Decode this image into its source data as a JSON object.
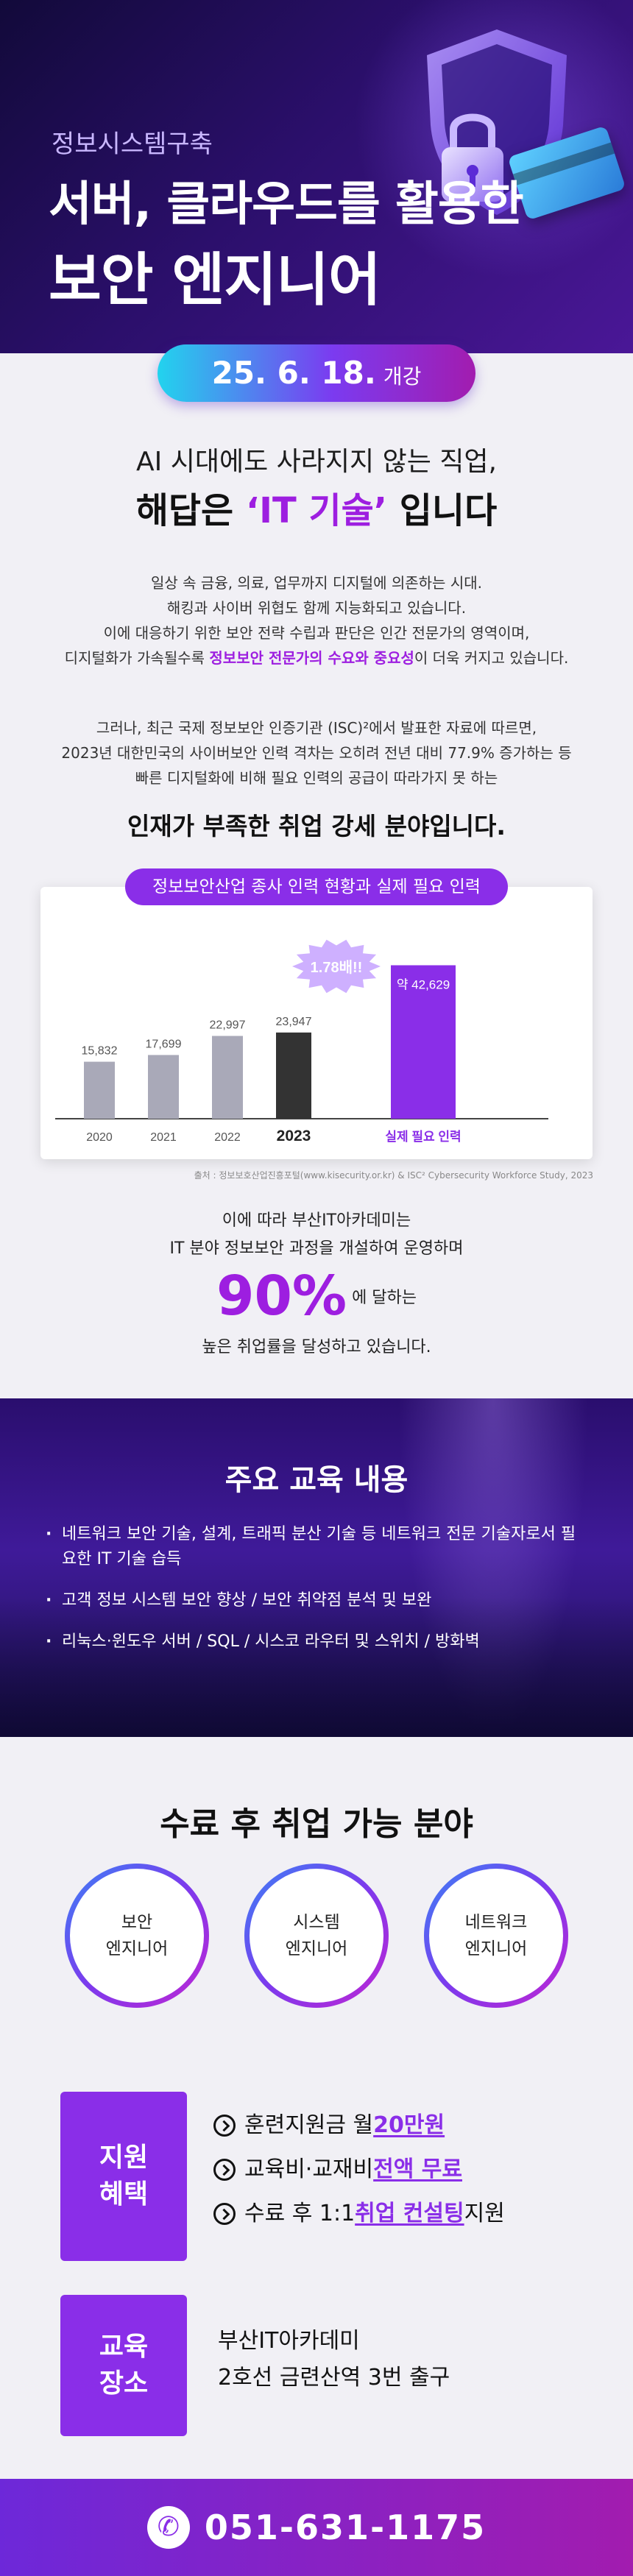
{
  "hero": {
    "subtitle": "정보시스템구축",
    "title_line1": "서버, 클라우드를 활용한",
    "title_line2": "보안 엔지니어",
    "open_date": "25. 6. 18.",
    "open_label": "개강"
  },
  "intro": {
    "headline1": "AI 시대에도 사라지지 않는 직업,",
    "headline2_pre": "해답은 ",
    "headline2_accent": "‘IT 기술’",
    "headline2_post": " 입니다",
    "p1_line1": "일상 속 금융, 의료, 업무까지 디지털에 의존하는 시대.",
    "p1_line2": "해킹과 사이버 위협도 함께 지능화되고 있습니다.",
    "p1_line3": "이에 대응하기 위한 보안 전략 수립과 판단은 인간 전문가의 영역이며,",
    "p1_line4_pre": "디지털화가 가속될수록 ",
    "p1_line4_hl": "정보보안 전문가의 수요와 중요성",
    "p1_line4_post": "이 더욱 커지고 있습니다.",
    "p2_line1": "그러나, 최근 국제 정보보안 인증기관 (ISC)²에서 발표한 자료에 따르면,",
    "p2_line2": "2023년 대한민국의 사이버보안 인력 격차는 오히려 전년 대비 77.9% 증가하는 등",
    "p2_line3": "빠른 디지털화에 비해 필요 인력의 공급이 따라가지 못 하는",
    "strong_line": "인재가 부족한 취업 강세 분야입니다."
  },
  "chart_data": {
    "type": "bar",
    "title": "정보보안산업 종사 인력 현황과 실제 필요 인력",
    "categories": [
      "2020",
      "2021",
      "2022",
      "2023",
      "실제 필요 인력"
    ],
    "values": [
      15832,
      17699,
      22997,
      23947,
      42629
    ],
    "value_labels": [
      "15,832",
      "17,699",
      "22,997",
      "23,947",
      "약 42,629"
    ],
    "ylim": [
      0,
      46000
    ],
    "annotation": "1.78배!!",
    "colors": {
      "past": "#a9a9b8",
      "current": "#333333",
      "needed": "#8a2ee8"
    },
    "source": "출처 : 정보보호산업진흥포털(www.kisecurity.or.kr)  &  ISC² Cybersecurity Workforce Study, 2023"
  },
  "closing": {
    "line1": "이에 따라 부산IT아카데미는",
    "line2": "IT 분야 정보보안 과정을 개설하여 운영하며",
    "big_number": "90%",
    "big_suffix": " 에 달하는",
    "line3": "높은 취업률을 달성하고 있습니다."
  },
  "curriculum": {
    "title": "주요 교육 내용",
    "items": [
      "네트워크 보안 기술, 설계, 트래픽 분산 기술 등 네트워크 전문 기술자로서 필요한 IT 기술 습득",
      "고객 정보 시스템 보안 향상 / 보안 취약점 분석 및 보완",
      "리눅스·윈도우 서버 / SQL / 시스코 라우터 및 스위치 / 방화벽"
    ]
  },
  "jobs": {
    "title": "수료 후 취업 가능 분야",
    "items": [
      {
        "line1": "보안",
        "line2": "엔지니어"
      },
      {
        "line1": "시스템",
        "line2": "엔지니어"
      },
      {
        "line1": "네트워크",
        "line2": "엔지니어"
      }
    ]
  },
  "benefits": {
    "box_line1": "지원",
    "box_line2": "혜택",
    "items": [
      {
        "pre": "훈련지원금 월 ",
        "hl": "20만원",
        "post": ""
      },
      {
        "pre": "교육비·교재비 ",
        "hl": "전액 무료",
        "post": ""
      },
      {
        "pre": "수료 후 1:1 ",
        "hl": "취업 컨설팅",
        "post": " 지원"
      }
    ]
  },
  "location": {
    "box_line1": "교육",
    "box_line2": "장소",
    "line1": "부산IT아카데미",
    "line2": "2호선 금련산역 3번 출구"
  },
  "footer": {
    "phone": "051-631-1175"
  }
}
